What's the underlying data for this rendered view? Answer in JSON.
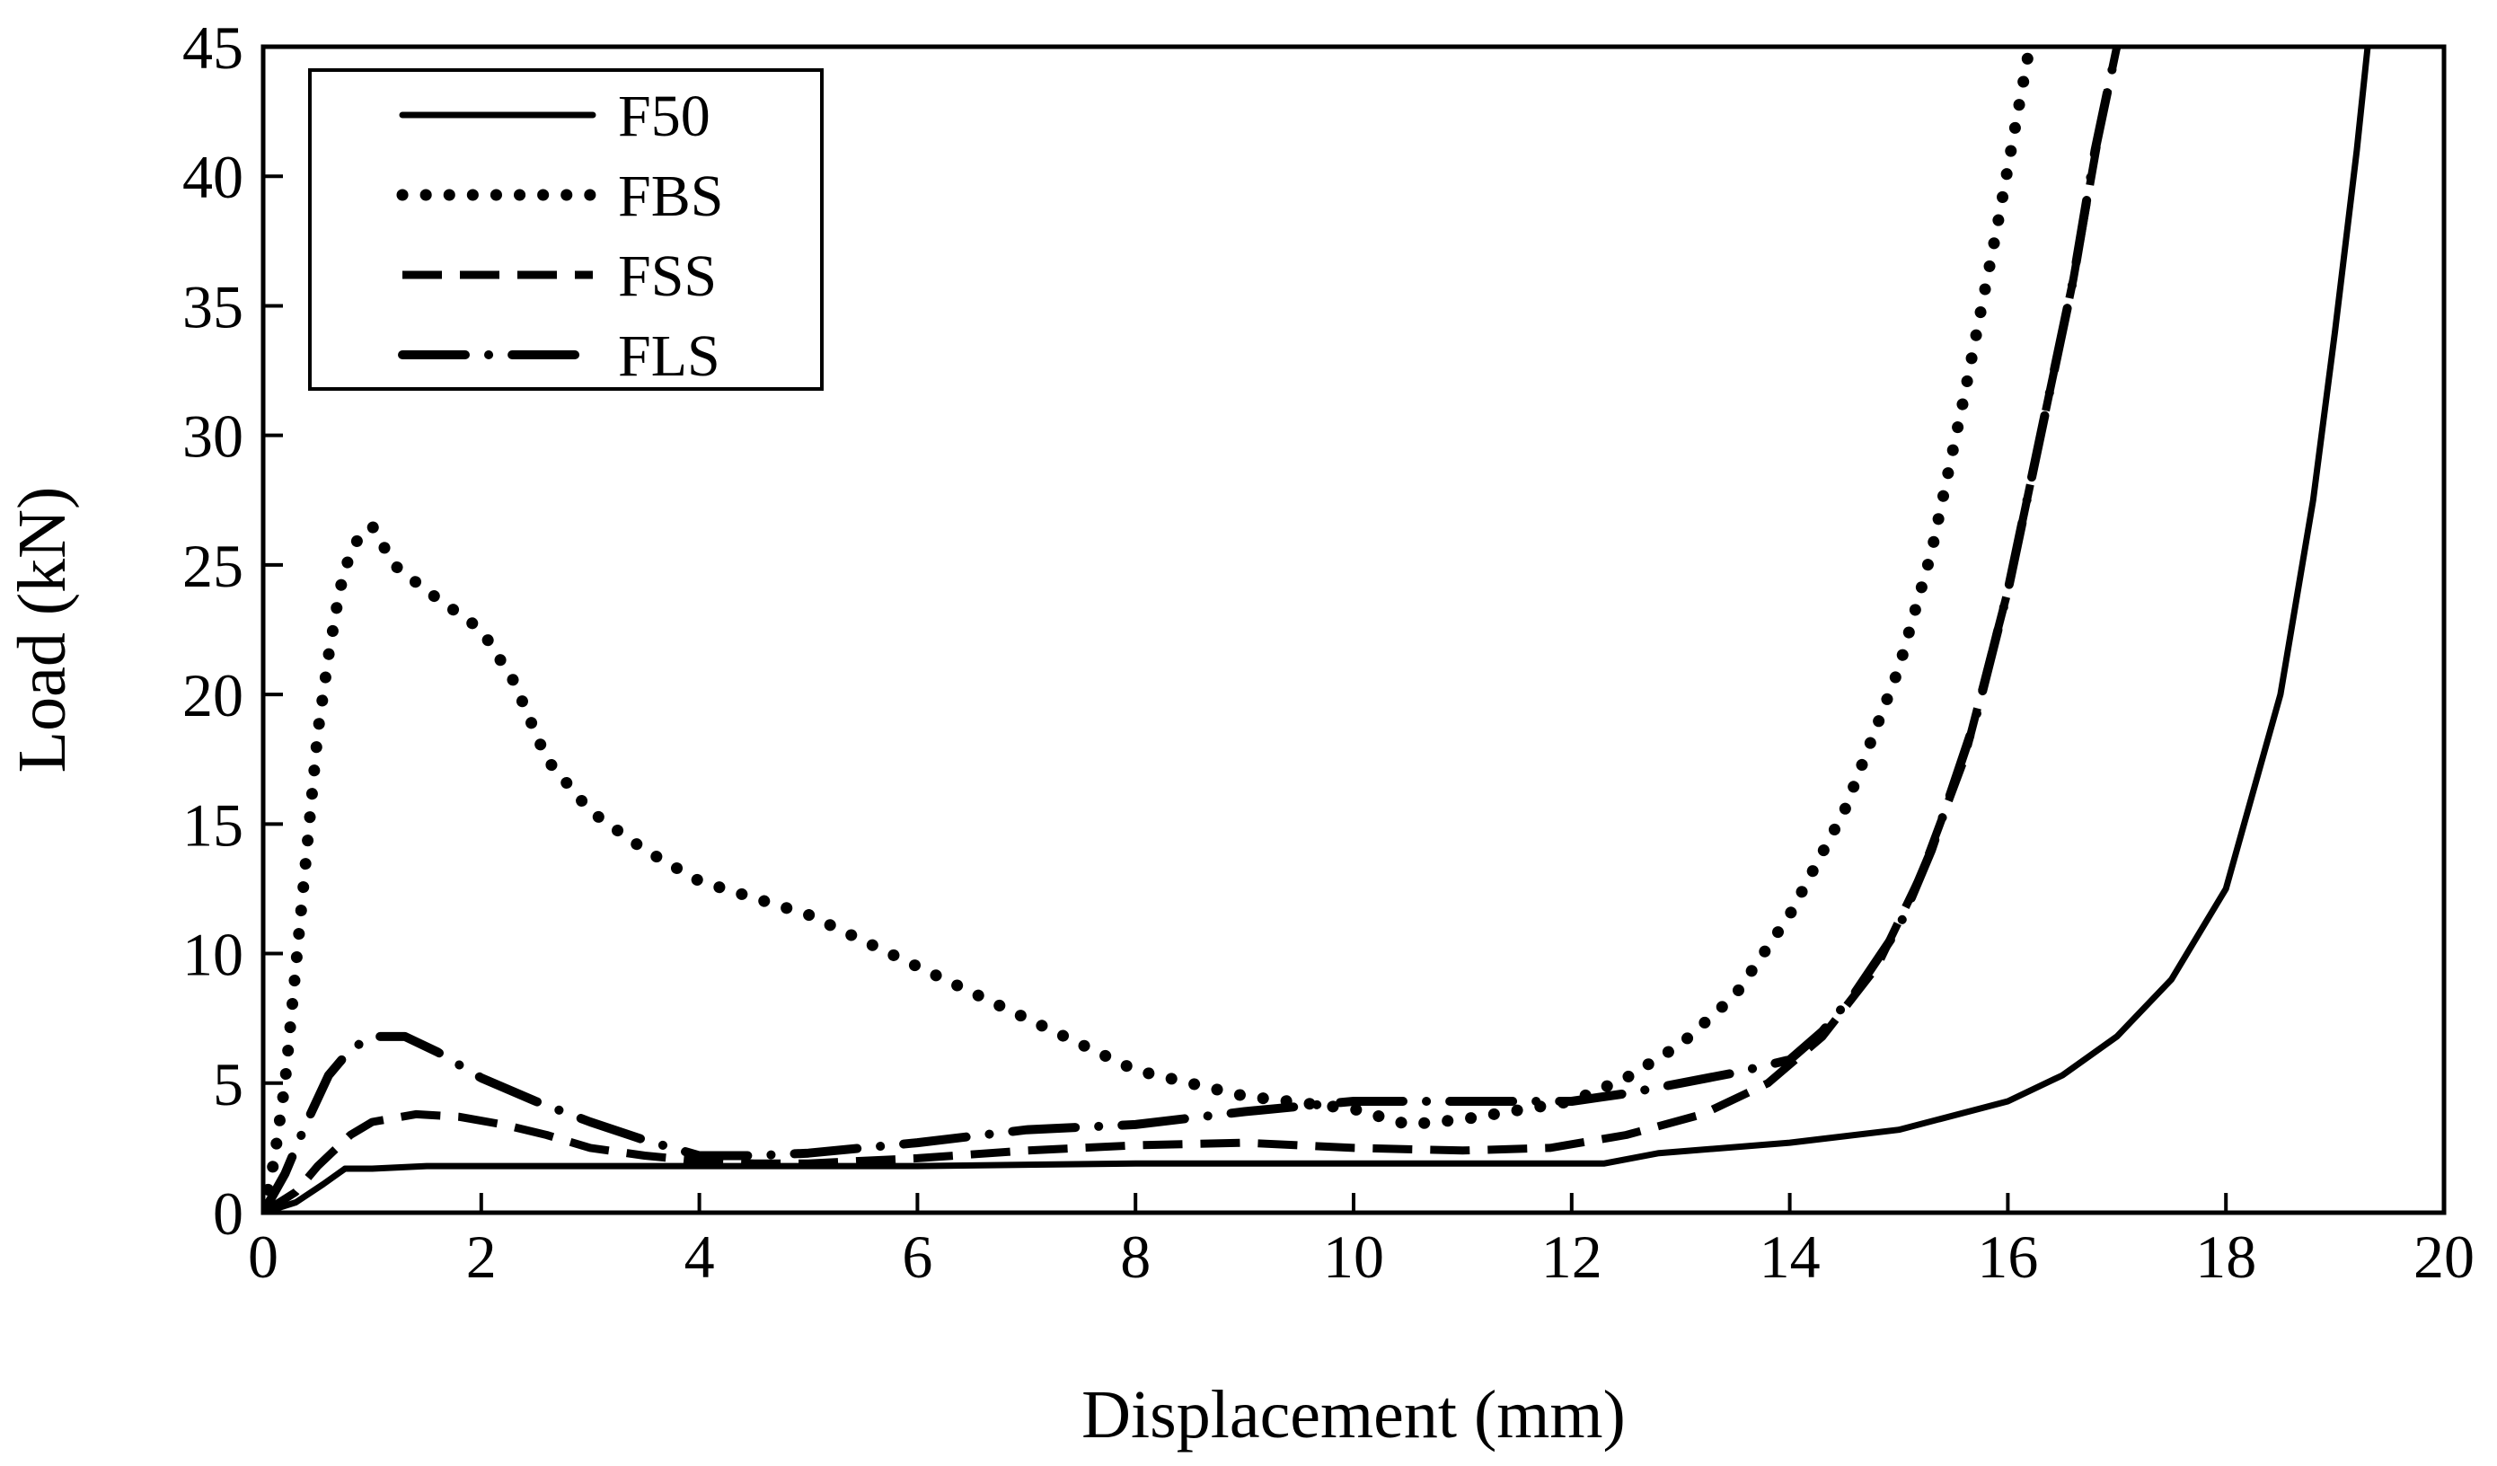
{
  "chart_data": {
    "type": "line",
    "title": "",
    "xlabel": "Displacement (mm)",
    "ylabel": "Load (kN)",
    "xlim": [
      0,
      20
    ],
    "ylim": [
      0,
      45
    ],
    "xticks": [
      0,
      2,
      4,
      6,
      8,
      10,
      12,
      14,
      16,
      18,
      20
    ],
    "yticks": [
      0,
      5,
      10,
      15,
      20,
      25,
      30,
      35,
      40,
      45
    ],
    "grid": false,
    "legend_position": "top-left",
    "series": [
      {
        "name": "F50",
        "style": "solid",
        "x": [
          0,
          0.3,
          0.55,
          0.75,
          1.0,
          1.5,
          2,
          4,
          6,
          8,
          10,
          11,
          12,
          12.3,
          12.8,
          14,
          15,
          16,
          16.5,
          17,
          17.5,
          18,
          18.5,
          18.8,
          19.0,
          19.2,
          19.3
        ],
        "y": [
          0,
          0.4,
          1.1,
          1.7,
          1.7,
          1.8,
          1.8,
          1.8,
          1.8,
          1.9,
          1.9,
          1.9,
          1.9,
          1.9,
          2.3,
          2.7,
          3.2,
          4.3,
          5.3,
          6.8,
          9.0,
          12.5,
          20.0,
          27.5,
          34.0,
          41.0,
          45.0
        ]
      },
      {
        "name": "FBS",
        "style": "dotted",
        "x": [
          0,
          0.1,
          0.2,
          0.3,
          0.4,
          0.5,
          0.6,
          0.7,
          0.8,
          0.9,
          1.0,
          1.2,
          1.5,
          2.0,
          2.3,
          2.6,
          3.0,
          3.5,
          4.0,
          5.0,
          6.0,
          7.0,
          8.0,
          9.0,
          10.0,
          10.5,
          11.0,
          12.0,
          12.5,
          13.0,
          13.5,
          14.0,
          14.5,
          15.0,
          15.3,
          15.6,
          15.9,
          16.2
        ],
        "y": [
          0,
          2.0,
          5.0,
          9.5,
          14.0,
          18.5,
          21.5,
          24.0,
          25.5,
          26.2,
          26.5,
          25.0,
          24.0,
          22.5,
          20.5,
          17.5,
          15.5,
          14.0,
          12.8,
          11.5,
          9.5,
          7.5,
          5.5,
          4.5,
          4.0,
          3.4,
          3.6,
          4.3,
          5.2,
          6.5,
          8.4,
          11.5,
          15.5,
          21.0,
          25.5,
          31.5,
          38.0,
          45.0
        ]
      },
      {
        "name": "FSS",
        "style": "dashed",
        "x": [
          0,
          0.3,
          0.5,
          0.8,
          1.0,
          1.4,
          1.8,
          2.2,
          2.6,
          3.0,
          3.5,
          4.0,
          4.5,
          5.0,
          6.0,
          7.0,
          8.0,
          9.0,
          10.0,
          11.0,
          11.8,
          12.5,
          13.2,
          13.8,
          14.3,
          14.8,
          15.2,
          15.6,
          16.0,
          16.3,
          16.6,
          16.85,
          17.0
        ],
        "y": [
          0,
          0.8,
          1.8,
          3.0,
          3.5,
          3.8,
          3.7,
          3.4,
          3.0,
          2.5,
          2.2,
          2.0,
          1.9,
          1.9,
          2.1,
          2.4,
          2.6,
          2.7,
          2.5,
          2.4,
          2.5,
          3.0,
          3.8,
          5.0,
          6.8,
          9.5,
          13.0,
          17.5,
          24.0,
          30.0,
          36.0,
          42.0,
          45.0
        ]
      },
      {
        "name": "FLS",
        "style": "dash-dot",
        "x": [
          0,
          0.2,
          0.4,
          0.6,
          0.8,
          1.0,
          1.3,
          1.6,
          2.0,
          2.5,
          3.0,
          3.5,
          4.0,
          4.5,
          5.0,
          6.0,
          7.0,
          8.0,
          9.0,
          10.0,
          11.0,
          12.0,
          12.5,
          13.0,
          13.5,
          14.0,
          14.3,
          14.6,
          15.0,
          15.3,
          15.7,
          16.0,
          16.3,
          16.6,
          16.8,
          17.0
        ],
        "y": [
          0,
          1.5,
          3.5,
          5.3,
          6.3,
          6.8,
          6.8,
          6.2,
          5.2,
          4.3,
          3.5,
          2.8,
          2.2,
          2.2,
          2.3,
          2.7,
          3.2,
          3.4,
          3.9,
          4.3,
          4.3,
          4.3,
          4.6,
          5.0,
          5.4,
          5.9,
          7.0,
          8.5,
          11.0,
          14.0,
          19.0,
          24.0,
          30.0,
          36.0,
          41.0,
          45.0
        ]
      }
    ]
  }
}
